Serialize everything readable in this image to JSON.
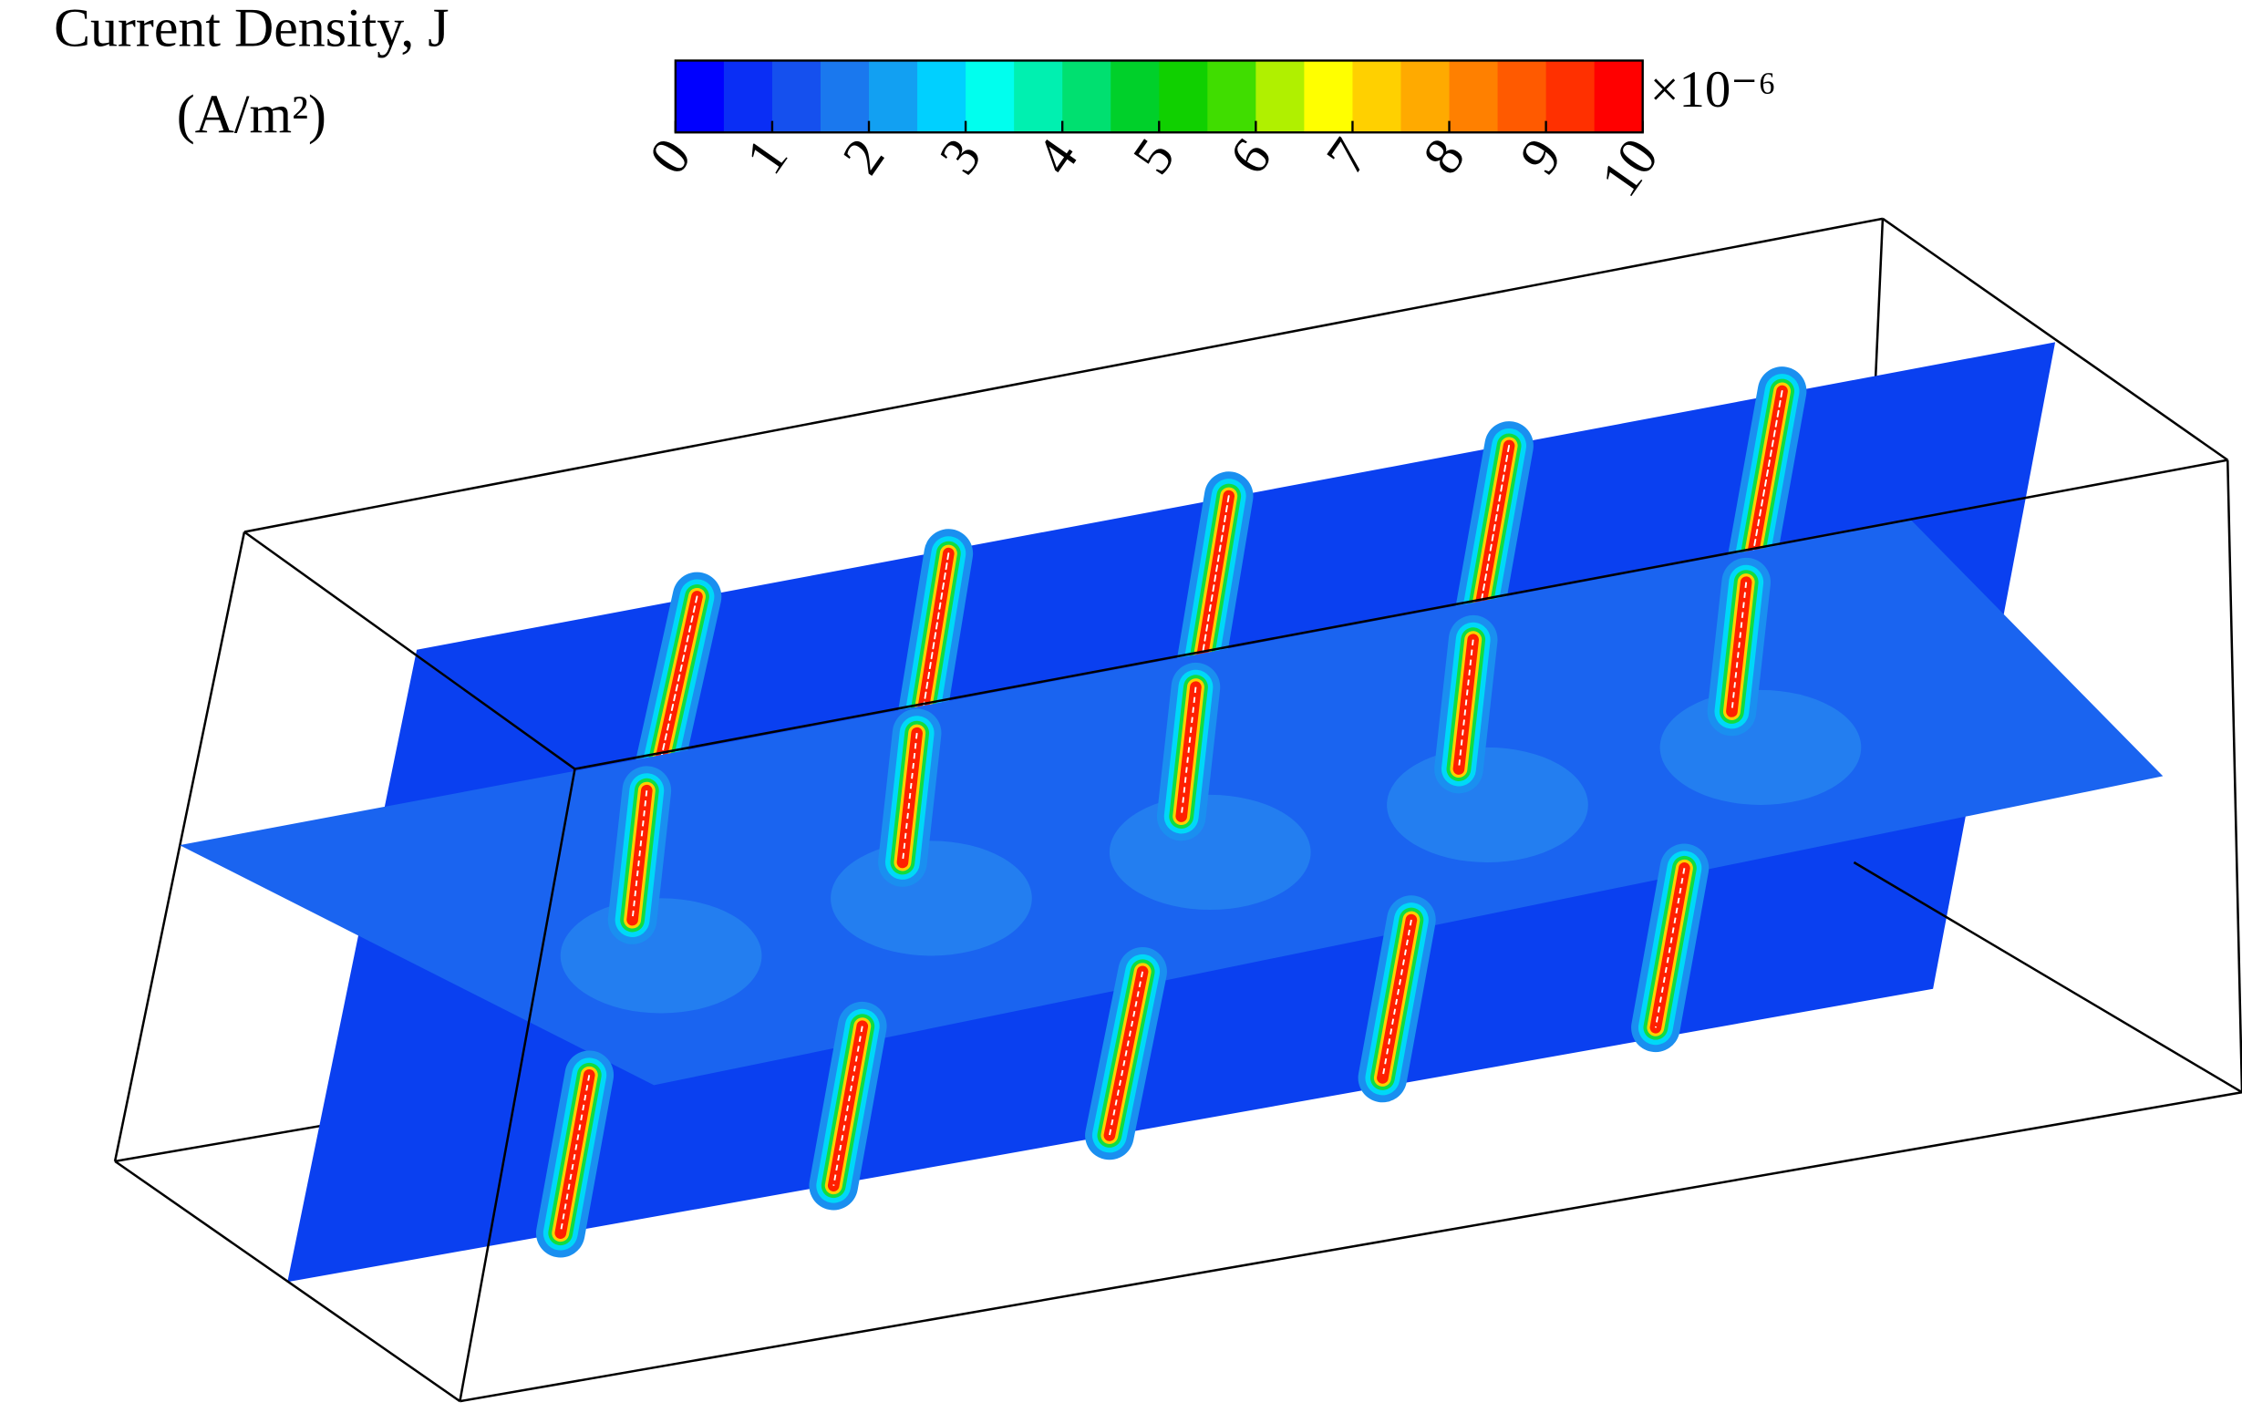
{
  "chart_data": {
    "type": "contour3d",
    "title": "Current Density, J",
    "unit": "(A/m²)",
    "multiplier": "×10⁻⁶",
    "colorbar": {
      "lim": [
        0,
        10
      ],
      "ticks": [
        0,
        1,
        2,
        3,
        4,
        5,
        6,
        7,
        8,
        9,
        10
      ],
      "colors": [
        "#0000ff",
        "#0a2ef5",
        "#1550ee",
        "#1a78ee",
        "#12a0f2",
        "#00d0ff",
        "#00ffee",
        "#00f0b0",
        "#00e070",
        "#00d02a",
        "#10d000",
        "#40dd00",
        "#b0f000",
        "#ffff00",
        "#ffd000",
        "#ffaa00",
        "#ff8000",
        "#ff5a00",
        "#ff3000",
        "#ff0000"
      ]
    }
  }
}
